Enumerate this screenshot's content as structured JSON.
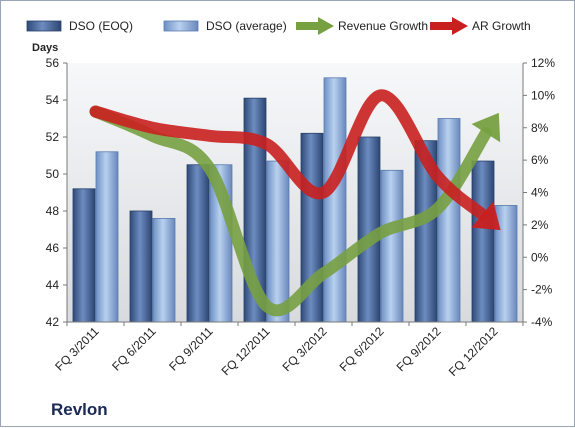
{
  "chart_data": {
    "type": "bar",
    "title": "",
    "company_label": "Revlon",
    "categories": [
      "FQ 3/2011",
      "FQ 6/2011",
      "FQ 9/2011",
      "FQ 12/2011",
      "FQ 3/2012",
      "FQ 6/2012",
      "FQ 9/2012",
      "FQ 12/2012"
    ],
    "left_axis": {
      "label": "Days",
      "min": 42,
      "max": 56,
      "step": 2
    },
    "right_axis": {
      "label": "",
      "min": -4,
      "max": 12,
      "step": 2,
      "format": "percent"
    },
    "series": [
      {
        "name": "DSO (EOQ)",
        "type": "bar",
        "axis": "left",
        "color": "#4f6fa0",
        "values": [
          49.2,
          48.0,
          50.5,
          54.1,
          52.2,
          52.0,
          51.8,
          50.7
        ]
      },
      {
        "name": "DSO (average)",
        "type": "bar",
        "axis": "left",
        "color": "#93b3dd",
        "values": [
          51.2,
          47.6,
          50.5,
          50.7,
          55.2,
          50.2,
          53.0,
          48.3
        ]
      },
      {
        "name": "Revenue Growth",
        "type": "line",
        "axis": "right",
        "color": "#77a041",
        "values": [
          9.0,
          7.5,
          5.5,
          -3.0,
          -1.0,
          1.5,
          3.0,
          8.5
        ]
      },
      {
        "name": "AR Growth",
        "type": "line",
        "axis": "right",
        "color": "#c9201f",
        "values": [
          9.0,
          8.0,
          7.5,
          7.0,
          4.0,
          10.0,
          5.0,
          2.0
        ]
      }
    ],
    "legend_position": "top",
    "grid": false
  }
}
